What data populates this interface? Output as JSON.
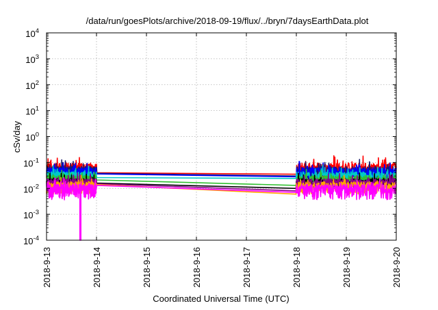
{
  "chart_data": {
    "type": "line",
    "title": "/data/run/goesPlots/archive/2018-09-19/flux/../bryn/7daysEarthData.plot",
    "xlabel": "Coordinated Universal Time (UTC)",
    "ylabel": "cSv/day",
    "y_scale": "log",
    "ylim": [
      0.0001,
      10000
    ],
    "xlim": [
      "2018-9-13",
      "2018-9-20"
    ],
    "x_ticks": [
      "2018-9-13",
      "2018-9-14",
      "2018-9-15",
      "2018-9-16",
      "2018-9-17",
      "2018-9-18",
      "2018-9-19",
      "2018-9-20"
    ],
    "y_ticks": [
      {
        "base": "10",
        "exp": "-4"
      },
      {
        "base": "10",
        "exp": "-3"
      },
      {
        "base": "10",
        "exp": "-2"
      },
      {
        "base": "10",
        "exp": "-1"
      },
      {
        "base": "10",
        "exp": "0"
      },
      {
        "base": "10",
        "exp": "1"
      },
      {
        "base": "10",
        "exp": "2"
      },
      {
        "base": "10",
        "exp": "3"
      },
      {
        "base": "10",
        "exp": "4"
      }
    ],
    "grid": true,
    "legend": "none",
    "data_gap": {
      "start": "2018-09-14",
      "end": "2018-09-18"
    },
    "dropout": {
      "x": "2018-09-13T16:00",
      "y": 0.0001
    },
    "series": [
      {
        "color": "#ff0000",
        "base": 0.06,
        "amp": 1.15,
        "y_gap_start": 0.04,
        "y_gap_end": 0.035
      },
      {
        "color": "#1a1a6e",
        "base": 0.045,
        "amp": 1.1,
        "y_gap_start": 0.038,
        "y_gap_end": 0.03
      },
      {
        "color": "#0000ff",
        "base": 0.042,
        "amp": 1.0,
        "y_gap_start": 0.036,
        "y_gap_end": 0.028
      },
      {
        "color": "#00c8c8",
        "base": 0.03,
        "amp": 0.9,
        "y_gap_start": 0.026,
        "y_gap_end": 0.024
      },
      {
        "color": "#30c030",
        "base": 0.022,
        "amp": 0.85,
        "y_gap_start": 0.021,
        "y_gap_end": 0.013
      },
      {
        "color": "#000000",
        "base": 0.017,
        "amp": 0.8,
        "y_gap_start": 0.016,
        "y_gap_end": 0.01
      },
      {
        "color": "#8b008b",
        "base": 0.016,
        "amp": 0.9,
        "y_gap_start": 0.015,
        "y_gap_end": 0.008
      },
      {
        "color": "#ffa500",
        "base": 0.012,
        "amp": 1.0,
        "y_gap_start": 0.014,
        "y_gap_end": 0.006
      },
      {
        "color": "#ff00ff",
        "base": 0.009,
        "amp": 1.2,
        "y_gap_start": 0.013,
        "y_gap_end": 0.007
      }
    ]
  }
}
